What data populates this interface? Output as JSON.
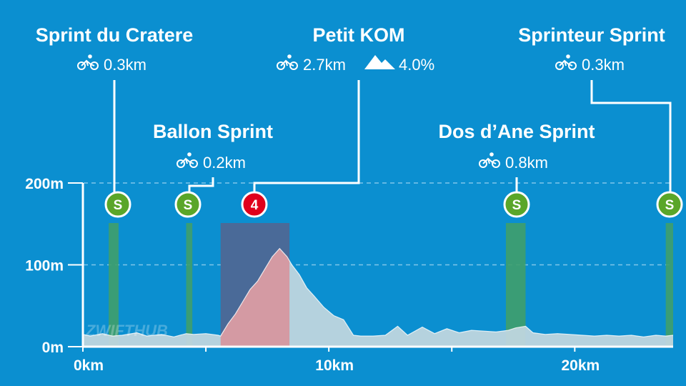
{
  "chart_data": {
    "type": "area",
    "title": "",
    "xlabel": "",
    "ylabel": "",
    "x_unit": "km",
    "y_unit": "m",
    "xlim": [
      0,
      24
    ],
    "ylim": [
      0,
      200
    ],
    "x_ticks": [
      {
        "value": 0,
        "label": "0km"
      },
      {
        "value": 10,
        "label": "10km"
      },
      {
        "value": 20,
        "label": "20km"
      }
    ],
    "y_ticks": [
      {
        "value": 0,
        "label": "0m"
      },
      {
        "value": 100,
        "label": "100m"
      },
      {
        "value": 200,
        "label": "200m"
      }
    ],
    "minor_x_ticks": [
      5,
      15
    ],
    "grid": "dashed horizontal at 100m and 200m",
    "elevation_profile": {
      "x": [
        0,
        0.3,
        0.8,
        1.2,
        1.6,
        2.2,
        2.6,
        3.2,
        3.7,
        4.2,
        4.5,
        5.0,
        5.5,
        5.6,
        5.9,
        6.2,
        6.5,
        6.8,
        7.1,
        7.4,
        7.7,
        8.0,
        8.3,
        8.5,
        8.8,
        9.1,
        9.4,
        9.8,
        10.2,
        10.6,
        11.0,
        11.3,
        11.8,
        12.3,
        12.8,
        13.2,
        13.8,
        14.3,
        14.8,
        15.3,
        15.8,
        16.3,
        16.8,
        17.3,
        17.6,
        18.0,
        18.3,
        18.8,
        19.3,
        19.8,
        20.3,
        20.8,
        21.3,
        21.8,
        22.3,
        22.8,
        23.3,
        23.7,
        24.0
      ],
      "elevation": [
        15,
        13,
        16,
        13,
        14,
        17,
        13,
        15,
        12,
        16,
        15,
        16,
        14,
        13,
        28,
        40,
        55,
        70,
        80,
        95,
        110,
        120,
        110,
        100,
        88,
        72,
        62,
        48,
        38,
        33,
        14,
        13,
        13,
        14,
        25,
        14,
        24,
        16,
        22,
        17,
        20,
        19,
        18,
        20,
        23,
        25,
        17,
        15,
        16,
        15,
        14,
        13,
        14,
        13,
        14,
        12,
        14,
        13,
        14
      ]
    },
    "climb_highlight": {
      "start": 5.6,
      "end": 8.4,
      "color": "#4a6a98",
      "profile_fill": "#d49aa3"
    },
    "profile_fill": "#bfd6de",
    "segments": [
      {
        "name": "Sprint du Cratere",
        "badge": "S",
        "badge_color": "#5aa629",
        "start": 1.05,
        "end": 1.45,
        "length": "0.3km",
        "gradient": ""
      },
      {
        "name": "Ballon Sprint",
        "badge": "S",
        "badge_color": "#5aa629",
        "start": 4.2,
        "end": 4.45,
        "length": "0.2km",
        "gradient": ""
      },
      {
        "name": "Petit KOM",
        "badge": "4",
        "badge_color": "#e0001b",
        "start": 5.6,
        "end": 8.4,
        "length": "2.7km",
        "gradient": "4.0%"
      },
      {
        "name": "Dos d’Ane Sprint",
        "badge": "S",
        "badge_color": "#5aa629",
        "start": 17.2,
        "end": 18.0,
        "length": "0.8km",
        "gradient": ""
      },
      {
        "name": "Sprinteur Sprint",
        "badge": "S",
        "badge_color": "#5aa629",
        "start": 23.7,
        "end": 24.0,
        "length": "0.3km",
        "gradient": ""
      }
    ],
    "sprint_zone_color": "#3f9e6a"
  },
  "icons": {
    "segment_length": "bicycle-icon",
    "segment_gradient": "mountain-icon"
  },
  "watermark": "ZWIFTHUB",
  "colors": {
    "background": "#0b8fd0",
    "axis": "#ffffff",
    "grid": "#7fc6ea"
  }
}
